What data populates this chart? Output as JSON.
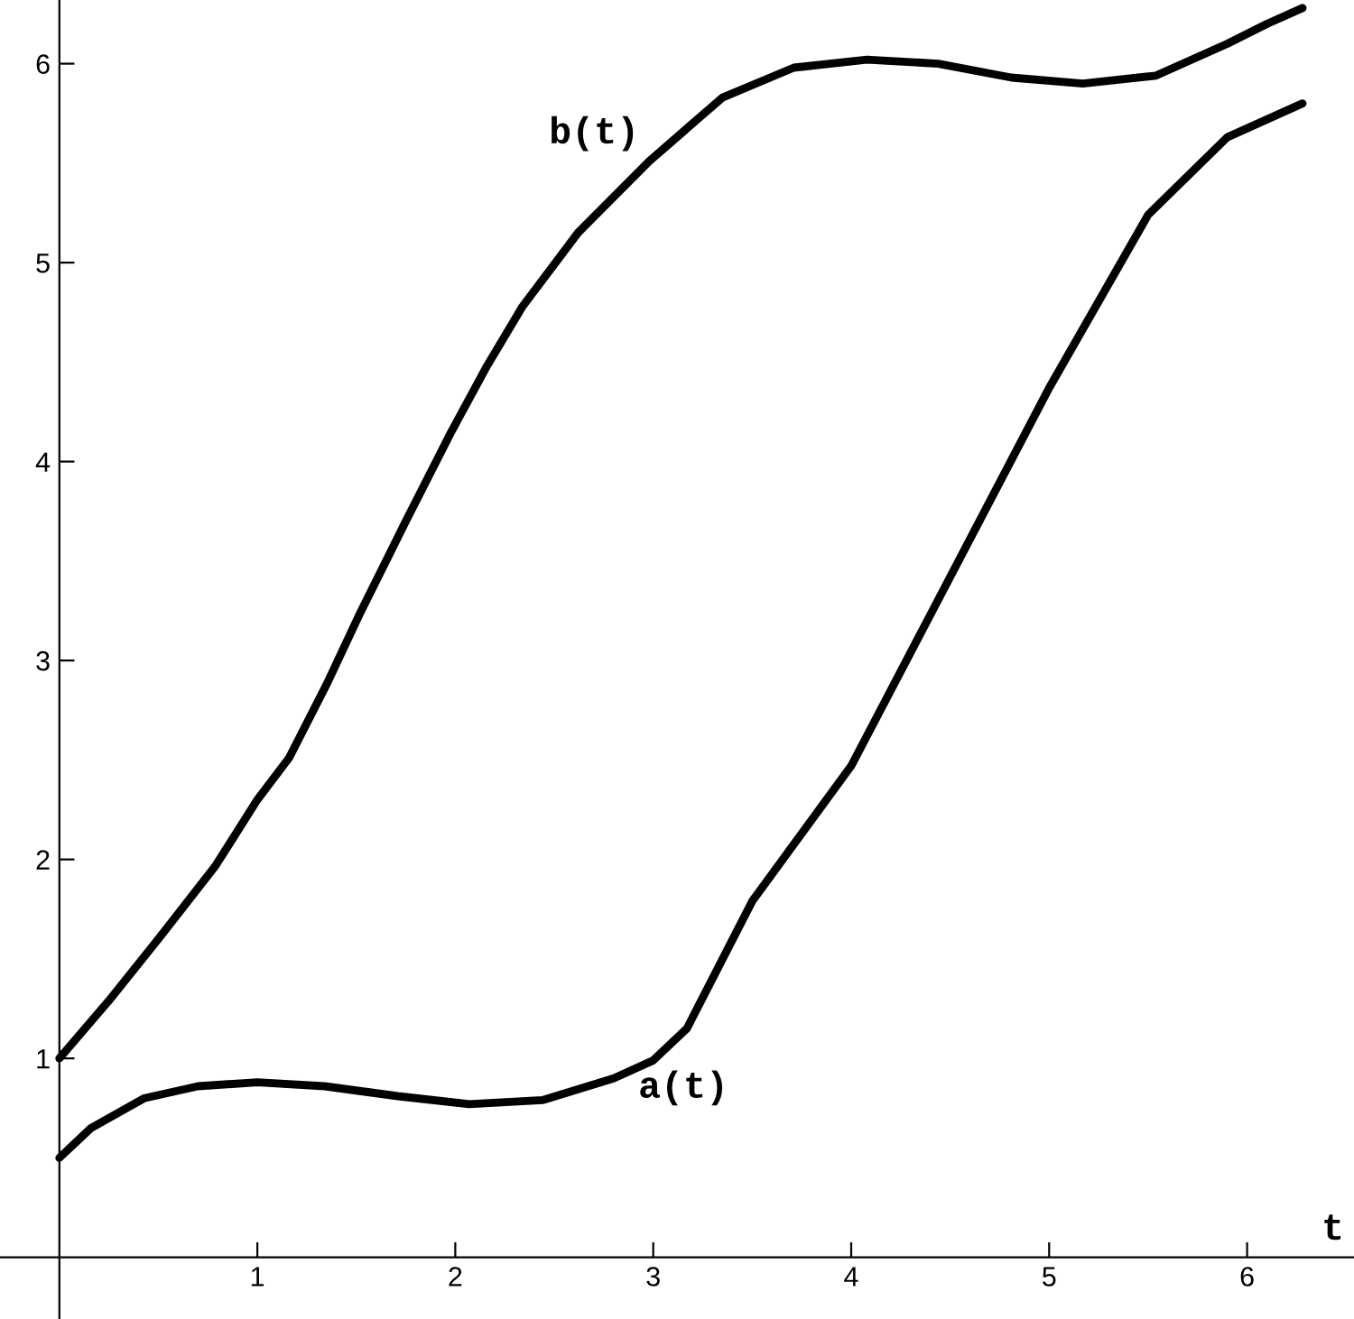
{
  "chart_data": {
    "type": "line",
    "xlabel": "t",
    "xlim": [
      -0.3,
      6.54
    ],
    "ylim": [
      -0.31,
      6.32
    ],
    "xticks": [
      1,
      2,
      3,
      4,
      5,
      6
    ],
    "yticks": [
      1,
      2,
      3,
      4,
      5,
      6
    ],
    "grid": false,
    "legend": false,
    "marker": "none",
    "line_style": "solid",
    "series": [
      {
        "color": "#000000",
        "x": [
          0,
          0.25,
          0.5,
          0.79,
          1.0,
          1.16,
          1.35,
          1.52,
          1.75,
          1.98,
          2.16,
          2.34,
          2.62,
          2.98,
          3.35,
          3.71,
          4.08,
          4.44,
          4.81,
          5.17,
          5.54,
          5.9,
          6.1,
          6.28
        ],
        "values": [
          1,
          1.29,
          1.6,
          1.97,
          2.3,
          2.51,
          2.88,
          3.24,
          3.7,
          4.15,
          4.48,
          4.78,
          5.15,
          5.51,
          5.83,
          5.98,
          6.02,
          6.0,
          5.93,
          5.9,
          5.94,
          6.1,
          6.2,
          6.28
        ]
      },
      {
        "color": "#000000",
        "x": [
          0,
          0.16,
          0.43,
          0.7,
          1.0,
          1.34,
          1.71,
          2.07,
          2.44,
          2.8,
          3.0,
          3.17,
          3.5,
          4.0,
          4.5,
          5.0,
          5.5,
          5.9,
          6.28
        ],
        "values": [
          0.5,
          0.65,
          0.8,
          0.86,
          0.88,
          0.86,
          0.81,
          0.77,
          0.79,
          0.9,
          0.99,
          1.15,
          1.79,
          2.47,
          3.42,
          4.37,
          5.24,
          5.63,
          5.8
        ]
      }
    ],
    "annotations": [
      {
        "text": "b(t)",
        "x": 2.98,
        "y": 5.51
      },
      {
        "text": "a(t)",
        "x": 3.0,
        "y": 0.99
      }
    ]
  }
}
